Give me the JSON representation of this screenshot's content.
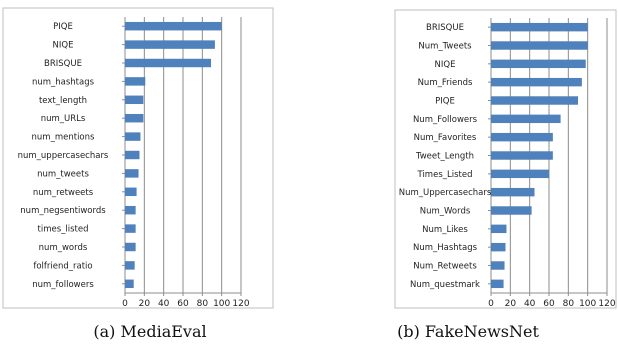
{
  "chart_data": [
    {
      "type": "bar",
      "orientation": "horizontal",
      "caption": "(a) MediaEval",
      "categories": [
        "PIQE",
        "NIQE",
        "BRISQUE",
        "num_hashtags",
        "text_length",
        "num_URLs",
        "num_mentions",
        "num_uppercasechars",
        "num_tweets",
        "num_retweets",
        "num_negsentiwords",
        "times_listed",
        "num_words",
        "folfriend_ratio",
        "num_followers"
      ],
      "values": [
        100,
        93,
        89,
        21,
        19,
        19,
        16,
        15,
        14,
        12,
        11,
        11,
        11,
        10,
        9
      ],
      "xlim": [
        0,
        120
      ],
      "xticks": [
        "0",
        "20",
        "40",
        "60",
        "80",
        "100",
        "120"
      ],
      "grid": true,
      "bar_color": "#4f81bd"
    },
    {
      "type": "bar",
      "orientation": "horizontal",
      "caption": "(b) FakeNewsNet",
      "categories": [
        "BRISQUE",
        "Num_Tweets",
        "NIQE",
        "Num_Friends",
        "PIQE",
        "Num_Followers",
        "Num_Favorites",
        "Tweet_Length",
        "Times_Listed",
        "Num_Uppercasechars",
        "Num_Words",
        "Num_Likes",
        "Num_Hashtags",
        "Num_Retweets",
        "Num_questmark"
      ],
      "values": [
        100,
        100,
        98,
        94,
        90,
        72,
        64,
        64,
        60,
        45,
        42,
        16,
        15,
        14,
        13
      ],
      "xlim": [
        0,
        120
      ],
      "xticks": [
        "0",
        "20",
        "40",
        "60",
        "80",
        "100",
        "120"
      ],
      "grid": true,
      "bar_color": "#4f81bd"
    }
  ]
}
